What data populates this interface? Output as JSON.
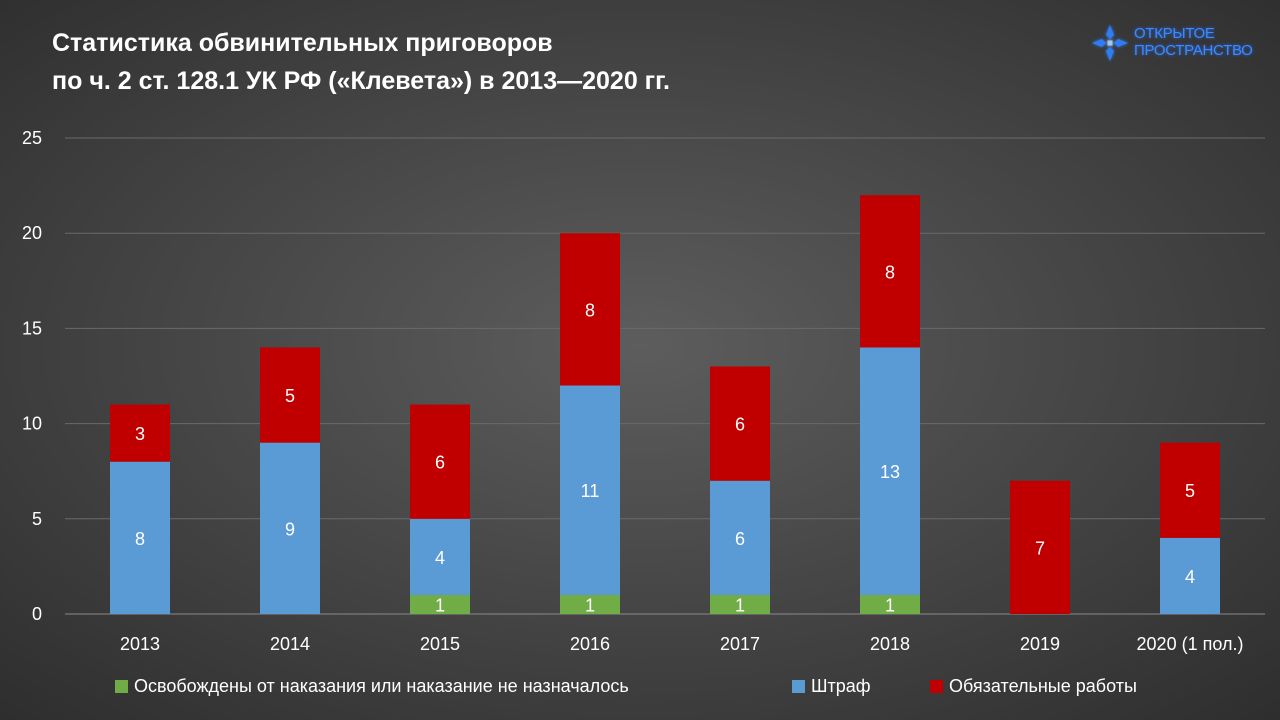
{
  "title": {
    "line1": "Статистика обвинительных приговоров",
    "line2": "по ч. 2 ст. 128.1 УК РФ («Клевета») в 2013—2020 гг."
  },
  "logo": {
    "line1": "Открытое",
    "line2": "Пространство",
    "icon": "cross-star-icon",
    "color": "#2f7df5"
  },
  "chart_data": {
    "type": "bar",
    "stacked": true,
    "title": "Статистика обвинительных приговоров по ч. 2 ст. 128.1 УК РФ («Клевета») в 2013—2020 гг.",
    "xlabel": "",
    "ylabel": "",
    "categories": [
      "2013",
      "2014",
      "2015",
      "2016",
      "2017",
      "2018",
      "2019",
      "2020 (1 пол.)"
    ],
    "ylim": [
      0,
      25
    ],
    "yticks": [
      0,
      5,
      10,
      15,
      20,
      25
    ],
    "grid": true,
    "legend_position": "bottom",
    "series": [
      {
        "name": "Освобождены от наказания или наказание не назначалось",
        "color": "#70ad47",
        "values": [
          0,
          0,
          1,
          1,
          1,
          1,
          0,
          0
        ]
      },
      {
        "name": "Штраф",
        "color": "#5b9bd5",
        "values": [
          8,
          9,
          4,
          11,
          6,
          13,
          0,
          4
        ]
      },
      {
        "name": "Обязательные работы",
        "color": "#c00000",
        "values": [
          3,
          5,
          6,
          8,
          6,
          8,
          7,
          5
        ]
      }
    ]
  }
}
